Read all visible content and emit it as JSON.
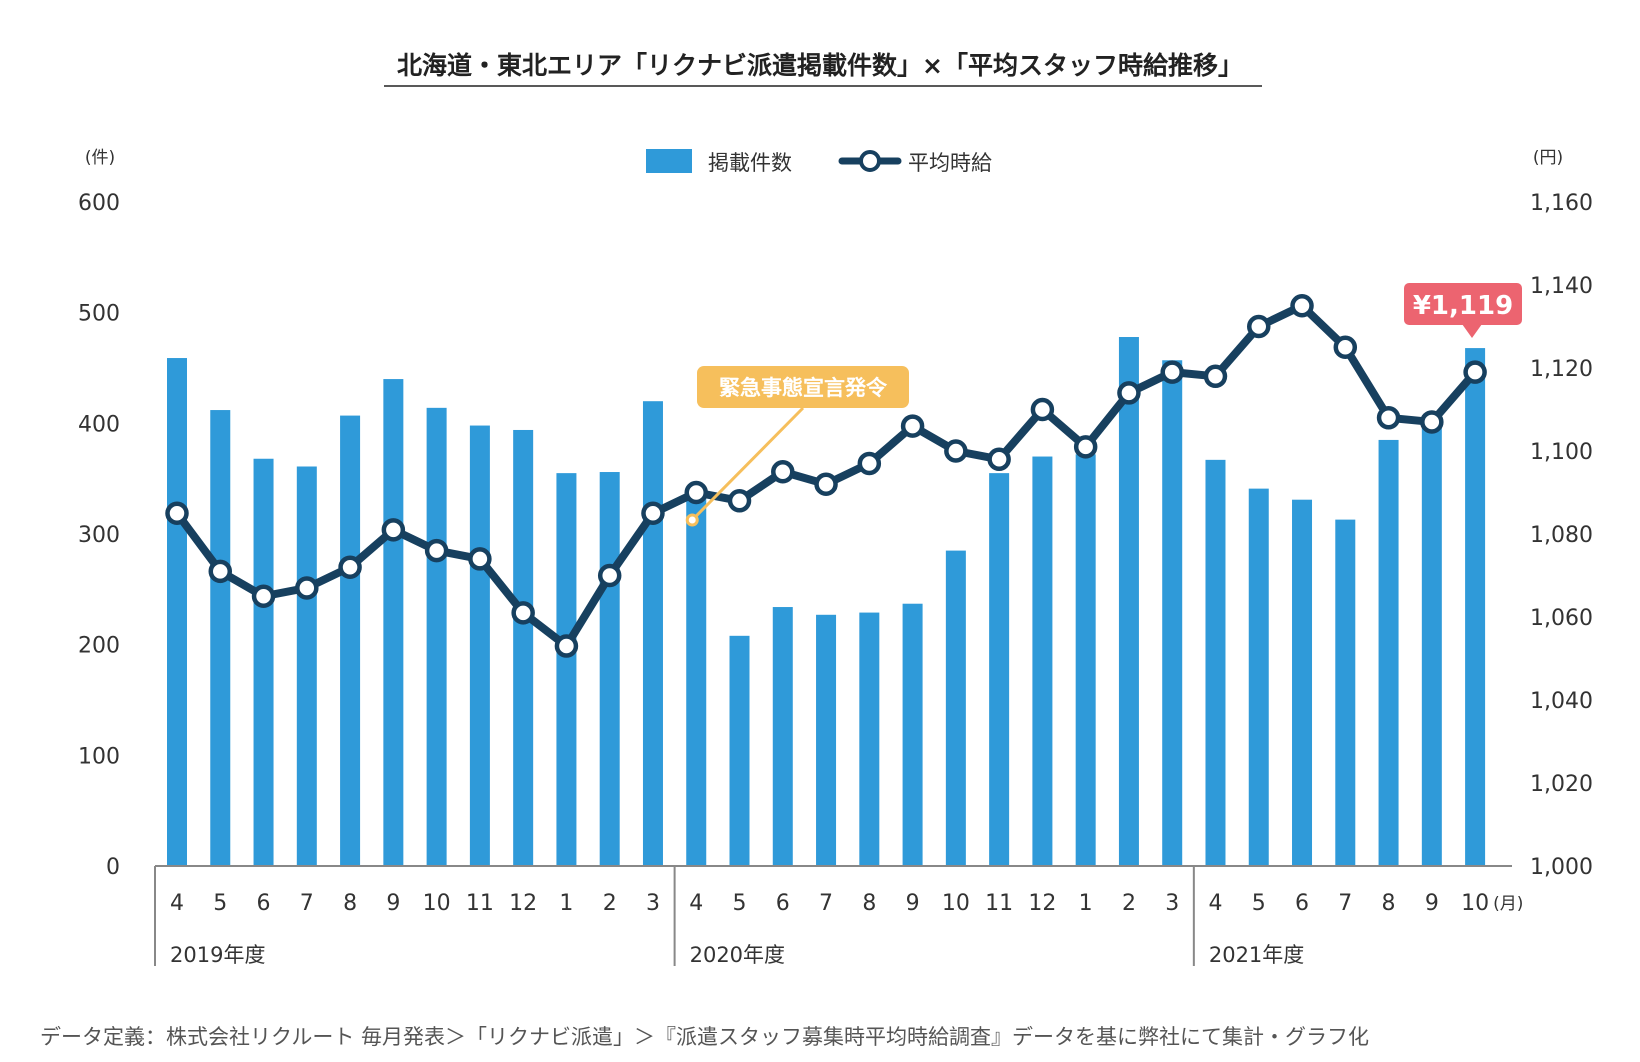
{
  "title": "北海道・東北エリア「リクナビ派遣掲載件数」×「平均スタッフ時給推移」",
  "footnote": "データ定義：株式会社リクルート 毎月発表＞「リクナビ派遣」＞『派遣スタッフ募集時平均時給調査』データを基に弊社にて集計・グラフ化",
  "colors": {
    "bar": "#2f9ad9",
    "line": "#17405f",
    "callout": "#f6bf5c",
    "price_badge": "#ec6470"
  },
  "chart_data": {
    "type": "bar",
    "categories": [
      "4",
      "5",
      "6",
      "7",
      "8",
      "9",
      "10",
      "11",
      "12",
      "1",
      "2",
      "3",
      "4",
      "5",
      "6",
      "7",
      "8",
      "9",
      "10",
      "11",
      "12",
      "1",
      "2",
      "3",
      "4",
      "5",
      "6",
      "7",
      "8",
      "9",
      "10"
    ],
    "x_unit": "(月)",
    "year_groups": [
      {
        "label": "2019年度",
        "start": 0,
        "end": 11
      },
      {
        "label": "2020年度",
        "start": 12,
        "end": 23
      },
      {
        "label": "2021年度",
        "start": 24,
        "end": 30
      }
    ],
    "series": [
      {
        "name": "掲載件数",
        "type": "bar",
        "axis": "left",
        "values": [
          459,
          412,
          368,
          361,
          407,
          440,
          414,
          398,
          394,
          355,
          356,
          420,
          338,
          208,
          234,
          227,
          229,
          237,
          285,
          355,
          370,
          372,
          478,
          457,
          367,
          341,
          331,
          313,
          385,
          398,
          468
        ]
      },
      {
        "name": "平均時給",
        "type": "line",
        "axis": "right",
        "values": [
          1085,
          1071,
          1065,
          1067,
          1072,
          1081,
          1076,
          1074,
          1061,
          1053,
          1070,
          1085,
          1090,
          1088,
          1095,
          1092,
          1097,
          1106,
          1100,
          1098,
          1110,
          1101,
          1114,
          1119,
          1118,
          1130,
          1135,
          1125,
          1108,
          1107,
          1119
        ]
      }
    ],
    "y_left": {
      "unit": "(件)",
      "ylim": [
        0,
        600
      ],
      "ticks": [
        0,
        100,
        200,
        300,
        400,
        500,
        600
      ]
    },
    "y_right": {
      "unit": "(円)",
      "ylim": [
        1000,
        1160
      ],
      "ticks": [
        "1,000",
        "1,020",
        "1,040",
        "1,060",
        "1,080",
        "1,100",
        "1,120",
        "1,140",
        "1,160"
      ]
    },
    "legend": {
      "position": "top-center",
      "items": [
        "掲載件数",
        "平均時給"
      ]
    },
    "grid": false,
    "annotations": [
      {
        "text": "緊急事態宣言発令",
        "index": 12,
        "series": "平均時給"
      },
      {
        "text": "¥1,119",
        "index": 30,
        "series": "平均時給"
      }
    ]
  }
}
